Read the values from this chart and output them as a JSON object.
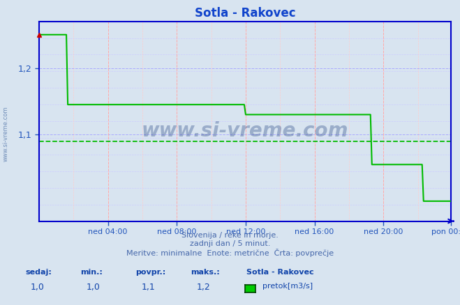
{
  "title": "Sotla - Rakovec",
  "title_color": "#1144cc",
  "bg_color": "#d8e4f0",
  "plot_bg_color": "#d8e4f0",
  "line_color": "#00bb00",
  "avg_line_color": "#00bb00",
  "avg_value": 1.09,
  "axis_color": "#0000cc",
  "tick_color": "#2255bb",
  "ylim": [
    0.97,
    1.27
  ],
  "yticks": [
    1.1,
    1.2
  ],
  "xtick_labels": [
    "ned 04:00",
    "ned 08:00",
    "ned 12:00",
    "ned 16:00",
    "ned 20:00",
    "pon 00:00"
  ],
  "footer_line1": "Slovenija / reke in morje.",
  "footer_line2": "zadnji dan / 5 minut.",
  "footer_line3": "Meritve: minimalne  Enote: metrične  Črta: povprečje",
  "footer_color": "#4466aa",
  "stat_labels": [
    "sedaj:",
    "min.:",
    "povpr.:",
    "maks.:"
  ],
  "stat_values": [
    "1,0",
    "1,0",
    "1,1",
    "1,2"
  ],
  "stat_color": "#1144aa",
  "legend_title": "Sotla - Rakovec",
  "legend_label": "pretok[m3/s]",
  "legend_color": "#00cc00",
  "watermark_text": "www.si-vreme.com",
  "watermark_color": "#1a3a7a",
  "side_text": "www.si-vreme.com",
  "side_color": "#5577aa",
  "n_points": 288,
  "step_times": [
    0,
    20,
    144,
    232,
    268,
    288
  ],
  "step_values": [
    1.25,
    1.145,
    1.13,
    1.055,
    1.0,
    1.0
  ],
  "marker_color": "#cc0000",
  "vgrid_major_color": "#ffaaaa",
  "vgrid_minor_color": "#ffcccc",
  "hgrid_major_color": "#aaaaff",
  "hgrid_minor_color": "#ccccff"
}
